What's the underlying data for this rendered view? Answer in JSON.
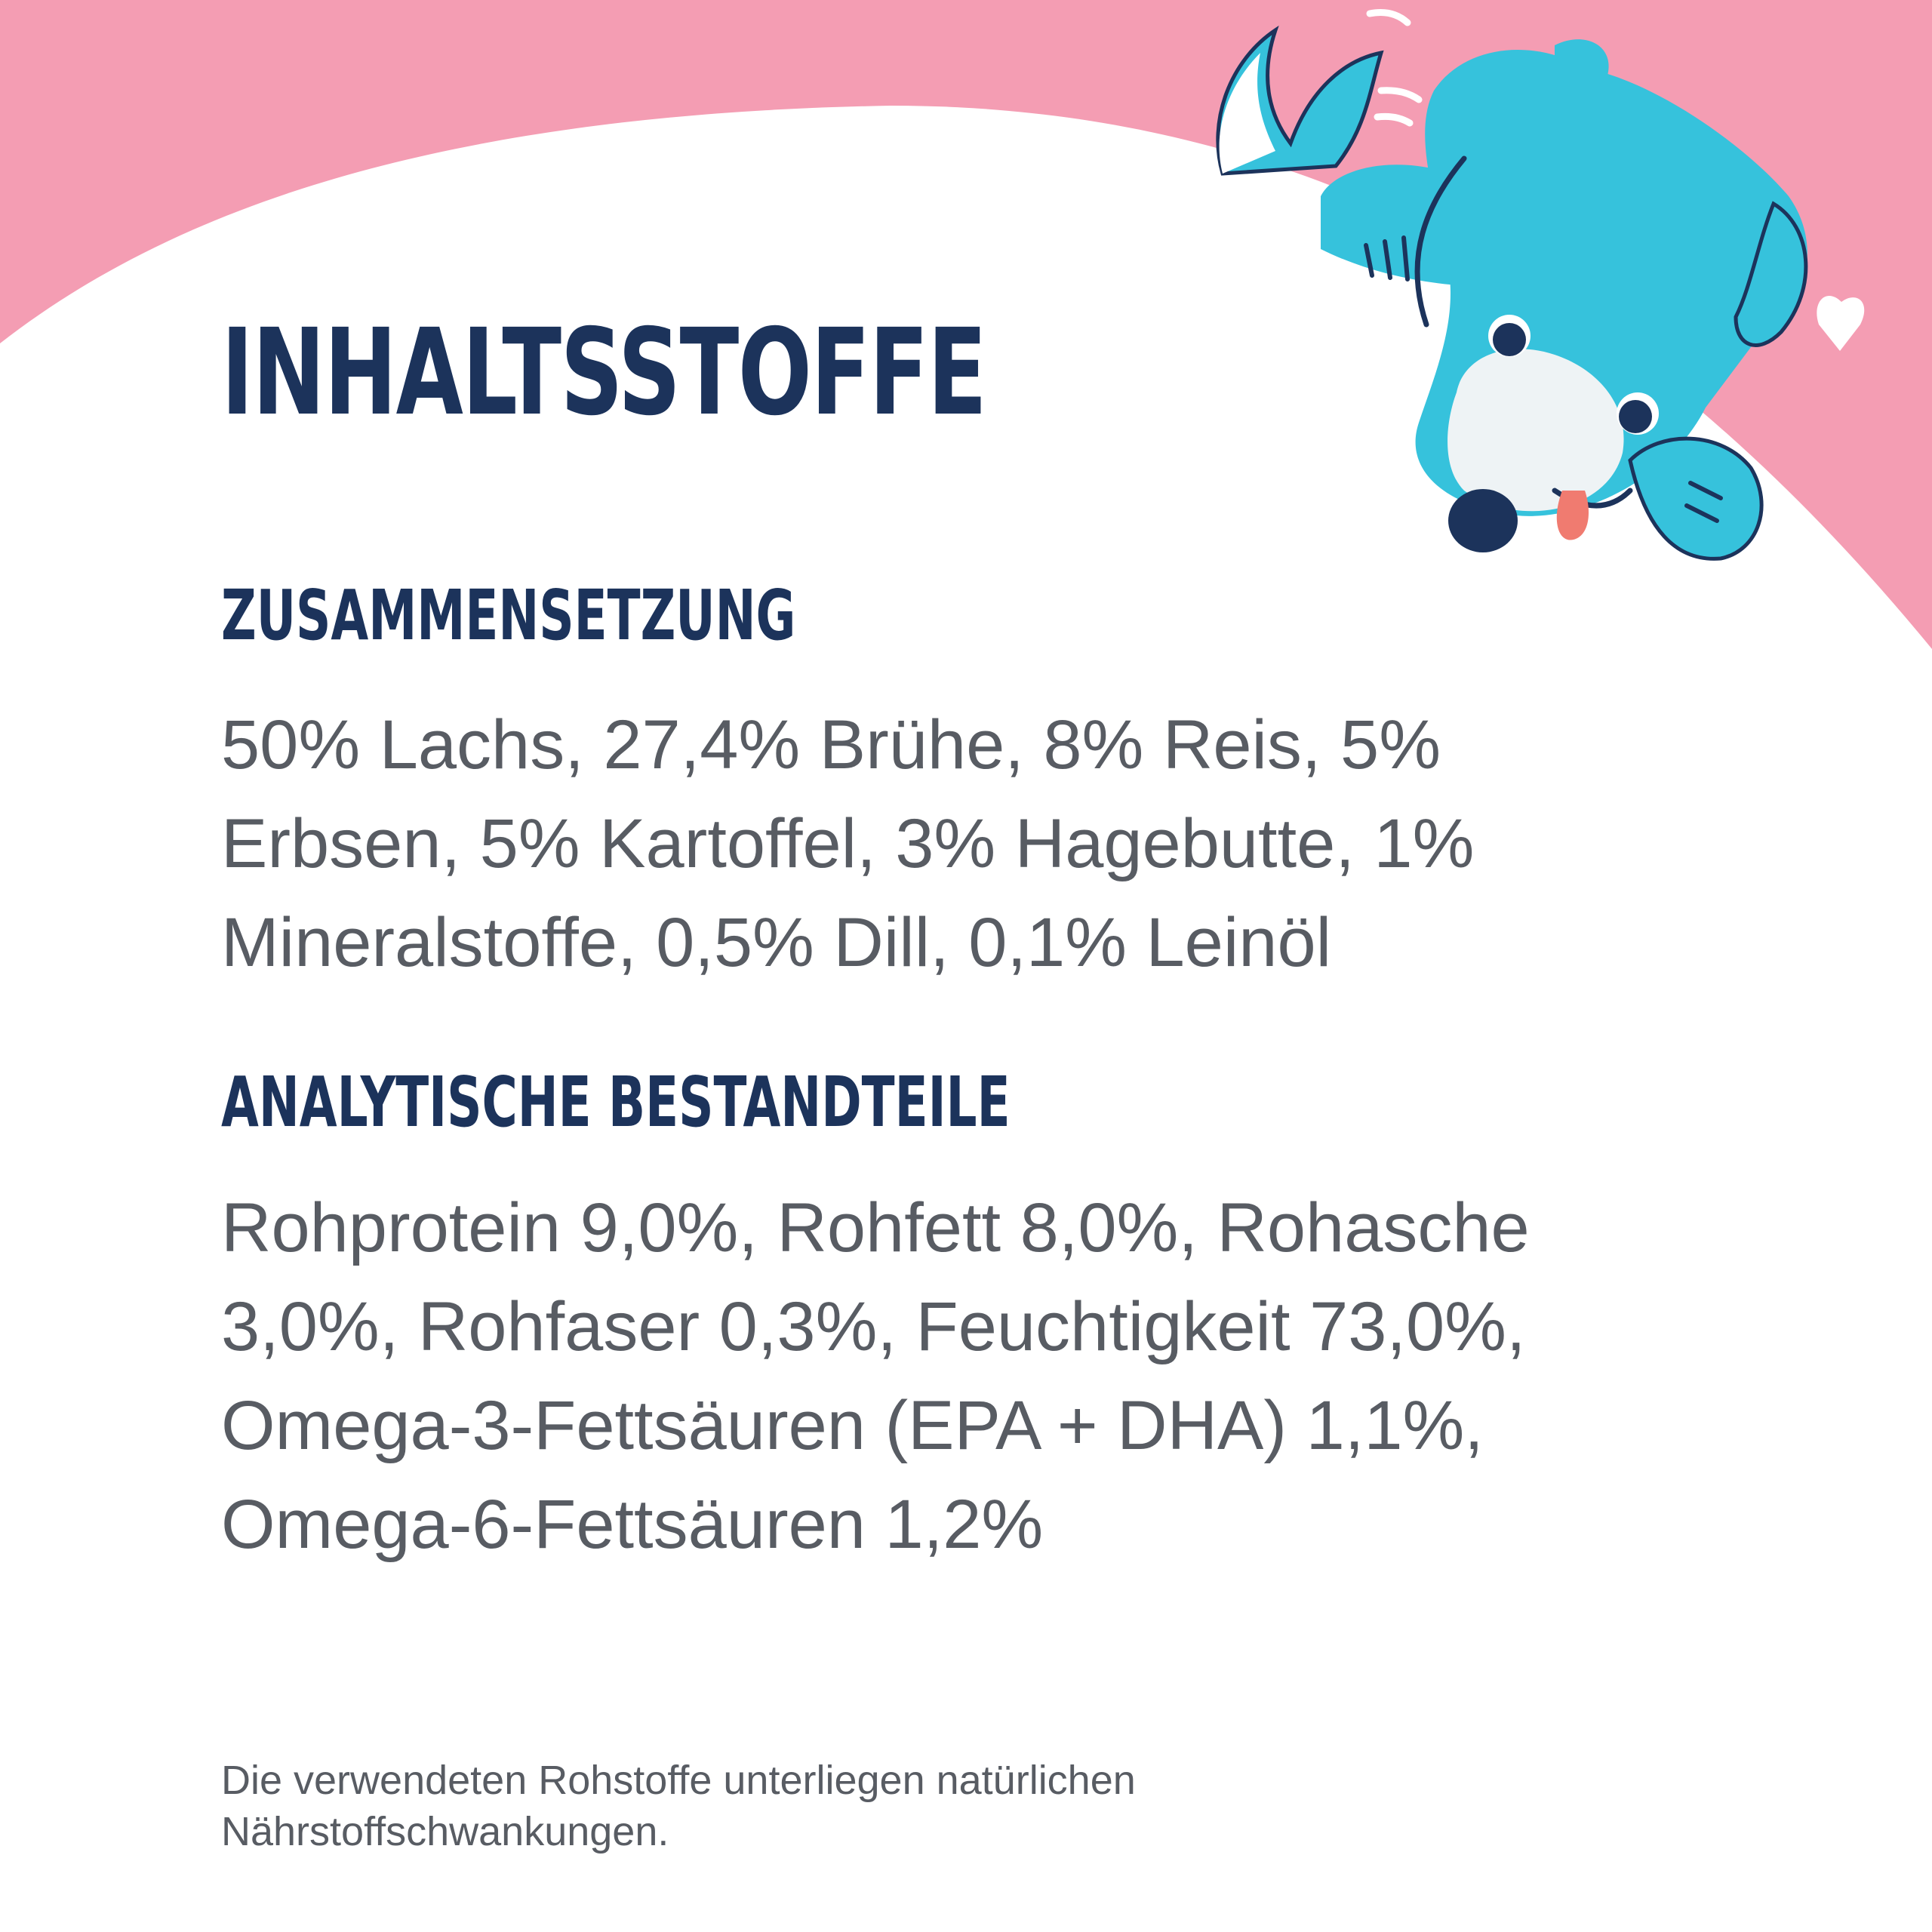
{
  "title": "INHALTSSTOFFE",
  "sections": [
    {
      "heading": "ZUSAMMENSETZUNG",
      "text": "50% Lachs, 27,4% Brühe, 8% Reis, 5% Erbsen, 5% Kartoffel, 3% Hagebutte, 1% Mineralstoffe, 0,5% Dill, 0,1% Leinöl"
    },
    {
      "heading": "ANALYTISCHE BESTANDTEILE",
      "text": "Rohprotein 9,0%, Rohfett 8,0%, Rohasche 3,0%, Rohfaser 0,3%, Feuchtigkeit 73,0%, Omega-3-Fettsäuren (EPA + DHA) 1,1%, Omega-6-Fettsäuren 1,2%"
    }
  ],
  "footnote": "Die verwendeten Rohstoffe unterliegen natürlichen Nährstoffschwankungen.",
  "colors": {
    "pink": "#f49db3",
    "navy": "#1c335b",
    "text_gray": "#585c63",
    "dog_blue": "#36c2dc",
    "dog_muzzle": "#eef3f5",
    "tongue": "#f07b70"
  },
  "illustration": "dog-peeking-icon"
}
